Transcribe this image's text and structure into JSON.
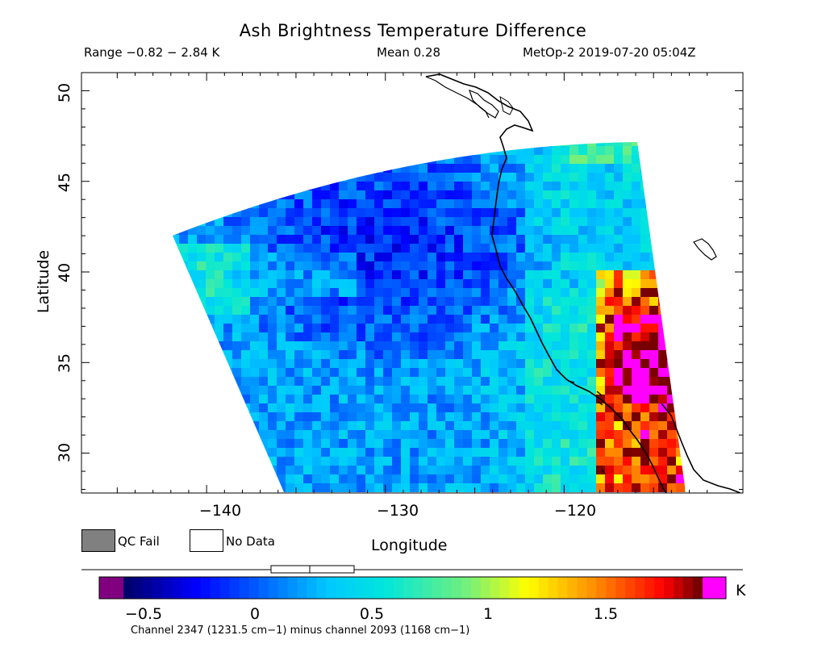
{
  "header": {
    "title": "Ash Brightness Temperature Difference",
    "range": "Range −0.82 − 2.84 K",
    "mean": "Mean 0.28",
    "stamp": "MetOp-2 2019-07-20 05:04Z"
  },
  "axes": {
    "xlabel": "Longitude",
    "ylabel": "Latitude",
    "x_ticks": [
      "−140",
      "−130",
      "−120"
    ],
    "y_ticks": [
      "50",
      "45",
      "40",
      "35",
      "30"
    ],
    "lon_range": [
      -147,
      -110
    ],
    "lat_range": [
      27.8,
      51
    ]
  },
  "legend": {
    "qc_fail": {
      "label": "QC Fail",
      "color": "#808080"
    },
    "no_data": {
      "label": "No Data",
      "color": "#ffffff"
    }
  },
  "colorbar": {
    "unit": "K",
    "ticks": [
      "−0.5",
      "0",
      "0.5",
      "1",
      "1.5"
    ],
    "range": [
      -0.67,
      2.0
    ],
    "under_color": "#800080",
    "over_color": "#ff00ff",
    "caption": "Channel 2347 (1231.5 cm−1) minus channel 2093 (1168 cm−1)"
  },
  "colors": {
    "low": "#0000c8",
    "mid": "#00e6e6",
    "high": "#ff0000",
    "coastline": "#000000"
  }
}
